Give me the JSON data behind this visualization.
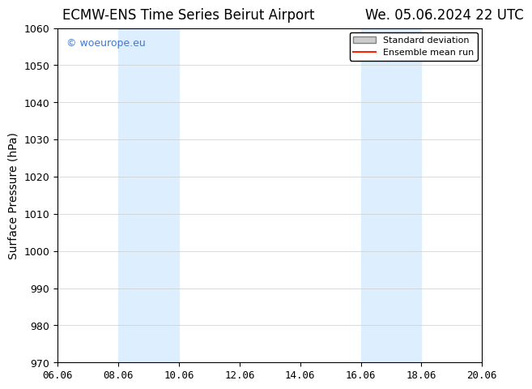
{
  "title_left": "ECMW-ENS Time Series Beirut Airport",
  "title_right": "We. 05.06.2024 22 UTC",
  "ylabel": "Surface Pressure (hPa)",
  "xlabel": "",
  "ylim": [
    970,
    1060
  ],
  "ytick_step": 10,
  "xlim_start": "06.06",
  "xlim_end": "20.06",
  "xtick_labels": [
    "06.06",
    "08.06",
    "10.06",
    "12.06",
    "14.06",
    "16.06",
    "18.06",
    "20.06"
  ],
  "xtick_positions": [
    0,
    2,
    4,
    6,
    8,
    10,
    12,
    14
  ],
  "shaded_regions": [
    {
      "start": 2,
      "end": 4,
      "color": "#ddeeff"
    },
    {
      "start": 10,
      "end": 12,
      "color": "#ddeeff"
    }
  ],
  "watermark_text": "© woeurope.eu",
  "watermark_color": "#4477cc",
  "legend_std_label": "Standard deviation",
  "legend_mean_label": "Ensemble mean run",
  "legend_std_color": "#cccccc",
  "legend_mean_color": "#ff2200",
  "bg_color": "#ffffff",
  "title_fontsize": 12,
  "axis_fontsize": 10,
  "tick_fontsize": 9,
  "watermark_fontsize": 9
}
